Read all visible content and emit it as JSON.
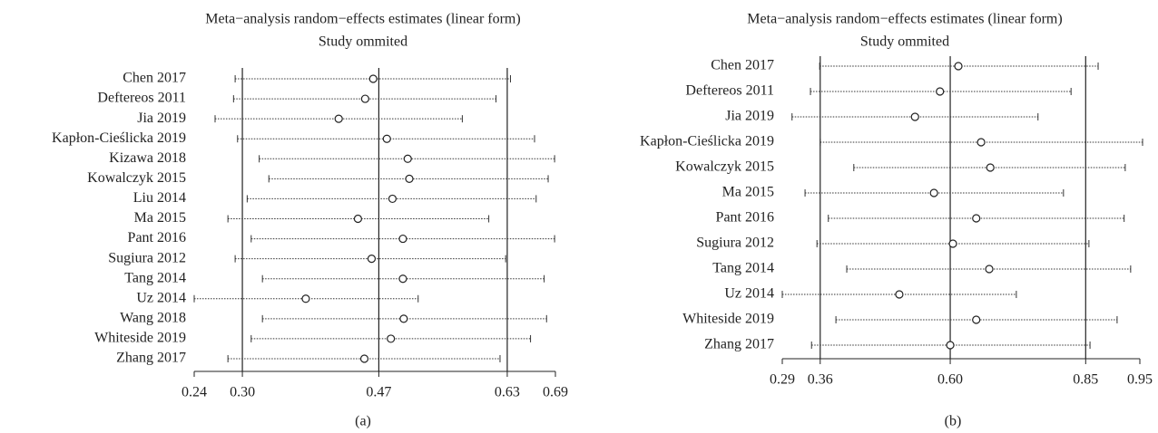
{
  "chart_data": [
    {
      "type": "forest",
      "title": "Meta−analysis random−effects estimates (linear form)",
      "subtitle": "Study ommited",
      "caption": "(a)",
      "categories": [
        "Chen 2017",
        "Deftereos 2011",
        "Jia 2019",
        "Kapłon-Cieślicka 2019",
        "Kizawa 2018",
        "Kowalczyk 2015",
        "Liu 2014",
        "Ma 2015",
        "Pant 2016",
        "Sugiura 2012",
        "Tang 2014",
        "Uz 2014",
        "Wang 2018",
        "Whiteside 2019",
        "Zhang 2017"
      ],
      "values": [
        0.463,
        0.453,
        0.42,
        0.48,
        0.506,
        0.508,
        0.487,
        0.444,
        0.5,
        0.461,
        0.5,
        0.379,
        0.501,
        0.485,
        0.452
      ],
      "lower": [
        0.291,
        0.289,
        0.266,
        0.294,
        0.321,
        0.333,
        0.306,
        0.282,
        0.311,
        0.291,
        0.325,
        0.24,
        0.325,
        0.311,
        0.282
      ],
      "upper": [
        0.634,
        0.616,
        0.574,
        0.664,
        0.689,
        0.681,
        0.666,
        0.607,
        0.689,
        0.628,
        0.676,
        0.519,
        0.679,
        0.659,
        0.621
      ],
      "xlim": [
        0.24,
        0.69
      ],
      "xticks": [
        0.24,
        {
          "value": 0.3,
          "label": "0.30"
        },
        0.47,
        0.63,
        0.69
      ],
      "reflines": [
        0.3,
        0.47,
        0.63
      ]
    },
    {
      "type": "forest",
      "title": "Meta−analysis random−effects estimates (linear form)",
      "subtitle": "Study ommited",
      "caption": "(b)",
      "categories": [
        "Chen 2017",
        "Deftereos 2011",
        "Jia 2019",
        "Kapłon-Cieślicka 2019",
        "Kowalczyk 2015",
        "Ma 2015",
        "Pant 2016",
        "Sugiura 2012",
        "Tang 2014",
        "Uz 2014",
        "Whiteside 2019",
        "Zhang 2017"
      ],
      "values": [
        0.615,
        0.581,
        0.535,
        0.657,
        0.674,
        0.57,
        0.648,
        0.605,
        0.672,
        0.506,
        0.648,
        0.6
      ],
      "lower": [
        0.359,
        0.342,
        0.308,
        0.36,
        0.422,
        0.332,
        0.375,
        0.354,
        0.409,
        0.29,
        0.389,
        0.344
      ],
      "upper": [
        0.873,
        0.823,
        0.762,
        0.955,
        0.923,
        0.809,
        0.921,
        0.856,
        0.933,
        0.722,
        0.908,
        0.858
      ],
      "xlim": [
        0.29,
        0.95
      ],
      "xticks": [
        0.29,
        0.36,
        {
          "value": 0.6,
          "label": "0.60"
        },
        0.85,
        0.95
      ],
      "reflines": [
        0.36,
        0.6,
        0.85
      ]
    }
  ]
}
